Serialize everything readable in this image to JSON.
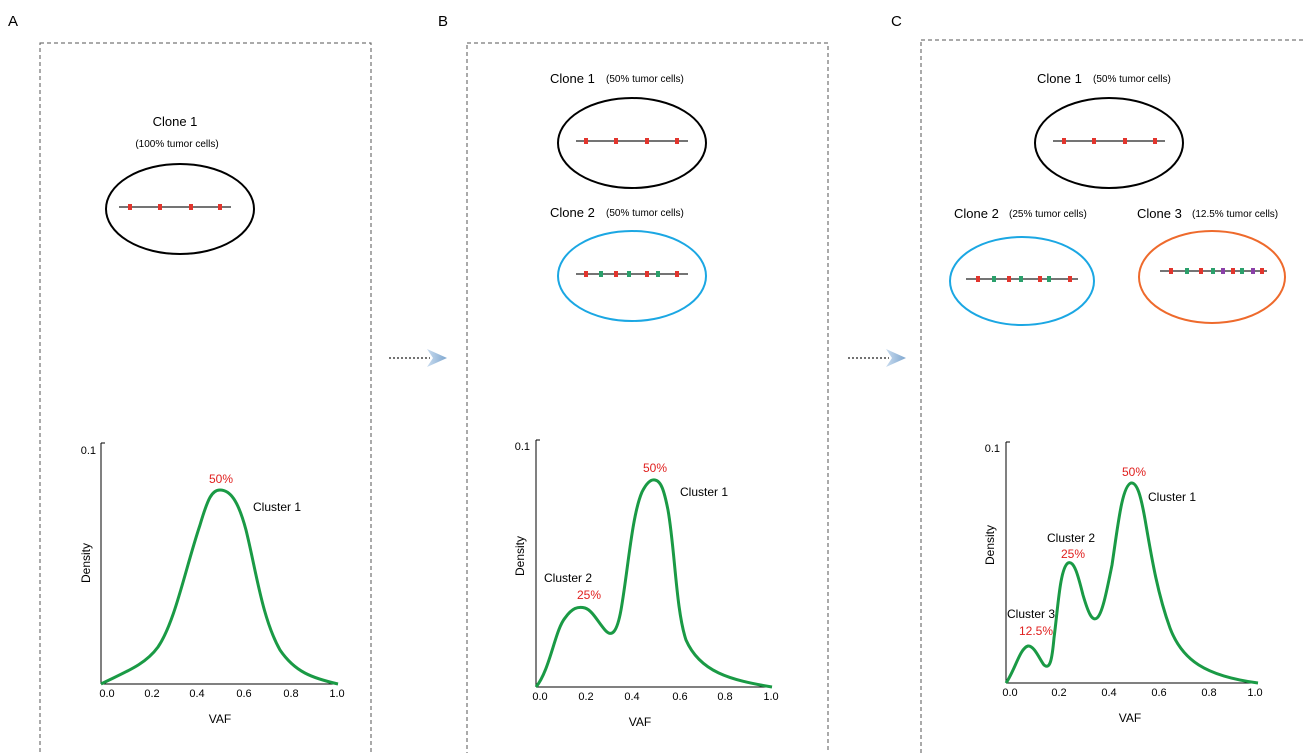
{
  "colors": {
    "curve": "#1a9a45",
    "red_mark": "#e2352d",
    "green_mark": "#2aa06b",
    "purple_mark": "#8a3fa8",
    "ellipse_clone1": "#000000",
    "ellipse_clone2": "#1ba7e3",
    "ellipse_clone3": "#ee6a2c",
    "percent_text": "#e0201f"
  },
  "panels": [
    {
      "letter": "A",
      "clones": [
        {
          "name": "Clone 1",
          "cells": "(100% tumor cells)",
          "color": "black",
          "marks": [
            "red",
            "red",
            "red",
            "red"
          ]
        }
      ],
      "chart": {
        "y_top": "0.1",
        "ylabel": "Density",
        "xlabel": "VAF",
        "xticks": [
          "0.0",
          "0.2",
          "0.4",
          "0.6",
          "0.8",
          "1.0"
        ],
        "clusters": [
          {
            "name": "Cluster 1",
            "percent": "50%"
          }
        ]
      }
    },
    {
      "letter": "B",
      "clones": [
        {
          "name": "Clone 1",
          "cells": "(50% tumor cells)",
          "color": "black",
          "marks": [
            "red",
            "red",
            "red",
            "red"
          ]
        },
        {
          "name": "Clone 2",
          "cells": "(50% tumor cells)",
          "color": "blue",
          "marks": [
            "red",
            "green",
            "red",
            "green",
            "red",
            "green",
            "red"
          ]
        }
      ],
      "chart": {
        "y_top": "0.1",
        "ylabel": "Density",
        "xlabel": "VAF",
        "xticks": [
          "0.0",
          "0.2",
          "0.4",
          "0.6",
          "0.8",
          "1.0"
        ],
        "clusters": [
          {
            "name": "Cluster 1",
            "percent": "50%"
          },
          {
            "name": "Cluster 2",
            "percent": "25%"
          }
        ]
      }
    },
    {
      "letter": "C",
      "clones": [
        {
          "name": "Clone 1",
          "cells": "(50% tumor cells)",
          "color": "black",
          "marks": [
            "red",
            "red",
            "red",
            "red"
          ]
        },
        {
          "name": "Clone 2",
          "cells": "(25% tumor cells)",
          "color": "blue",
          "marks": [
            "red",
            "green",
            "red",
            "green",
            "red",
            "green",
            "red"
          ]
        },
        {
          "name": "Clone 3",
          "cells": "(12.5% tumor cells)",
          "color": "orange",
          "marks": [
            "red",
            "green",
            "red",
            "green",
            "purple",
            "red",
            "green",
            "purple",
            "red"
          ]
        }
      ],
      "chart": {
        "y_top": "0.1",
        "ylabel": "Density",
        "xlabel": "VAF",
        "xticks": [
          "0.0",
          "0.2",
          "0.4",
          "0.6",
          "0.8",
          "1.0"
        ],
        "clusters": [
          {
            "name": "Cluster 1",
            "percent": "50%"
          },
          {
            "name": "Cluster 2",
            "percent": "25%"
          },
          {
            "name": "Cluster 3",
            "percent": "12.5%"
          }
        ]
      }
    }
  ],
  "chart_data": [
    {
      "type": "line",
      "panel": "A",
      "xlabel": "VAF",
      "ylabel": "Density",
      "xlim": [
        0,
        1
      ],
      "ylim": [
        0,
        0.1
      ],
      "series": [
        {
          "x": [
            0,
            0.1,
            0.2,
            0.3,
            0.4,
            0.48,
            0.55,
            0.6,
            0.7,
            0.8,
            0.9,
            1.0
          ],
          "y": [
            0,
            0.005,
            0.014,
            0.04,
            0.072,
            0.08,
            0.075,
            0.06,
            0.03,
            0.012,
            0.005,
            0
          ]
        }
      ]
    },
    {
      "type": "line",
      "panel": "B",
      "xlabel": "VAF",
      "ylabel": "Density",
      "xlim": [
        0,
        1
      ],
      "ylim": [
        0,
        0.1
      ],
      "series": [
        {
          "x": [
            0,
            0.05,
            0.1,
            0.15,
            0.2,
            0.25,
            0.3,
            0.35,
            0.4,
            0.45,
            0.48,
            0.52,
            0.55,
            0.6,
            0.7,
            0.8,
            0.9,
            1.0
          ],
          "y": [
            0,
            0.006,
            0.02,
            0.03,
            0.034,
            0.028,
            0.024,
            0.04,
            0.07,
            0.086,
            0.088,
            0.086,
            0.07,
            0.03,
            0.008,
            0.004,
            0.002,
            0
          ]
        }
      ]
    },
    {
      "type": "line",
      "panel": "C",
      "xlabel": "VAF",
      "ylabel": "Density",
      "xlim": [
        0,
        1
      ],
      "ylim": [
        0,
        0.1
      ],
      "series": [
        {
          "x": [
            0,
            0.05,
            0.1,
            0.15,
            0.2,
            0.25,
            0.3,
            0.35,
            0.4,
            0.45,
            0.48,
            0.52,
            0.55,
            0.6,
            0.7,
            0.8,
            0.9,
            1.0
          ],
          "y": [
            0,
            0.01,
            0.016,
            0.01,
            0.035,
            0.048,
            0.04,
            0.025,
            0.04,
            0.075,
            0.082,
            0.078,
            0.065,
            0.04,
            0.01,
            0.003,
            0.001,
            0
          ]
        }
      ]
    }
  ]
}
